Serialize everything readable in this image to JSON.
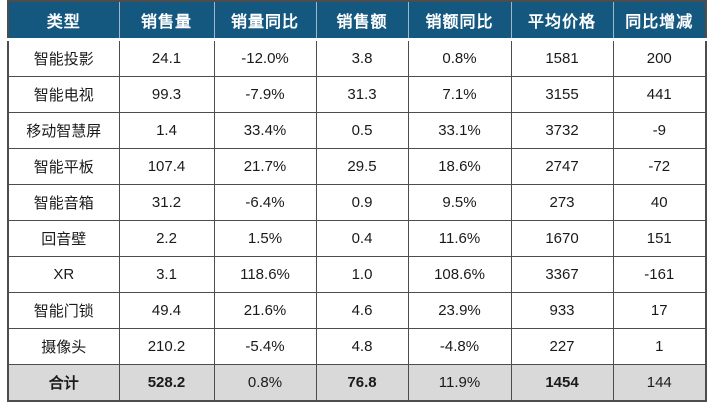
{
  "table": {
    "columns": [
      {
        "label": "类型"
      },
      {
        "label": "销售量"
      },
      {
        "label": "销量同比"
      },
      {
        "label": "销售额"
      },
      {
        "label": "销额同比"
      },
      {
        "label": "平均价格"
      },
      {
        "label": "同比增减"
      }
    ],
    "rows": [
      {
        "cells": [
          "智能投影",
          "24.1",
          "-12.0%",
          "3.8",
          "0.8%",
          "1581",
          "200"
        ],
        "tones": [
          "k",
          "k",
          "down",
          "k",
          "up",
          "k",
          "up"
        ],
        "total": false
      },
      {
        "cells": [
          "智能电视",
          "99.3",
          "-7.9%",
          "31.3",
          "7.1%",
          "3155",
          "441"
        ],
        "tones": [
          "k",
          "k",
          "down",
          "k",
          "up",
          "k",
          "up"
        ],
        "total": false
      },
      {
        "cells": [
          "移动智慧屏",
          "1.4",
          "33.4%",
          "0.5",
          "33.1%",
          "3732",
          "-9"
        ],
        "tones": [
          "k",
          "k",
          "up",
          "k",
          "up",
          "k",
          "down"
        ],
        "total": false
      },
      {
        "cells": [
          "智能平板",
          "107.4",
          "21.7%",
          "29.5",
          "18.6%",
          "2747",
          "-72"
        ],
        "tones": [
          "k",
          "k",
          "up",
          "k",
          "up",
          "k",
          "down"
        ],
        "total": false
      },
      {
        "cells": [
          "智能音箱",
          "31.2",
          "-6.4%",
          "0.9",
          "9.5%",
          "273",
          "40"
        ],
        "tones": [
          "k",
          "k",
          "down",
          "k",
          "up",
          "k",
          "up"
        ],
        "total": false
      },
      {
        "cells": [
          "回音壁",
          "2.2",
          "1.5%",
          "0.4",
          "11.6%",
          "1670",
          "151"
        ],
        "tones": [
          "k",
          "k",
          "up",
          "k",
          "up",
          "k",
          "up"
        ],
        "total": false
      },
      {
        "cells": [
          "XR",
          "3.1",
          "118.6%",
          "1.0",
          "108.6%",
          "3367",
          "-161"
        ],
        "tones": [
          "k",
          "k",
          "up",
          "k",
          "up",
          "k",
          "down"
        ],
        "total": false
      },
      {
        "cells": [
          "智能门锁",
          "49.4",
          "21.6%",
          "4.6",
          "23.9%",
          "933",
          "17"
        ],
        "tones": [
          "k",
          "k",
          "up",
          "k",
          "up",
          "k",
          "up"
        ],
        "total": false
      },
      {
        "cells": [
          "摄像头",
          "210.2",
          "-5.4%",
          "4.8",
          "-4.8%",
          "227",
          "1"
        ],
        "tones": [
          "k",
          "k",
          "down",
          "k",
          "down",
          "k",
          "up"
        ],
        "total": false
      },
      {
        "cells": [
          "合计",
          "528.2",
          "0.8%",
          "76.8",
          "11.9%",
          "1454",
          "144"
        ],
        "tones": [
          "k",
          "k",
          "up",
          "k",
          "up",
          "k",
          "up"
        ],
        "total": true
      }
    ],
    "colors": {
      "increase_text": "#fb3b3b",
      "decrease_text": "#2bb673",
      "header_background": "#14587f",
      "header_text": "#ffffff",
      "header_divider": "#9fb8c8",
      "total_row_background": "#d9d9d9",
      "grid_border": "#4d4d4d"
    }
  }
}
